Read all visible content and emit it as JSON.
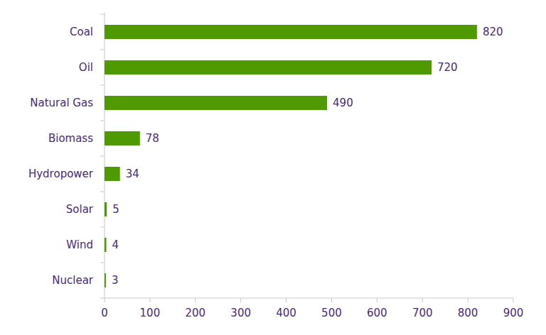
{
  "chart_data": {
    "type": "bar",
    "orientation": "horizontal",
    "categories": [
      "Coal",
      "Oil",
      "Natural Gas",
      "Biomass",
      "Hydropower",
      "Solar",
      "Wind",
      "Nuclear"
    ],
    "values": [
      820,
      720,
      490,
      78,
      34,
      5,
      4,
      3
    ],
    "color": "#4f9a00",
    "xlim": [
      0,
      900
    ],
    "xticks": [
      0,
      100,
      200,
      300,
      400,
      500,
      600,
      700,
      800,
      900
    ],
    "grid": false,
    "data_labels": true
  }
}
